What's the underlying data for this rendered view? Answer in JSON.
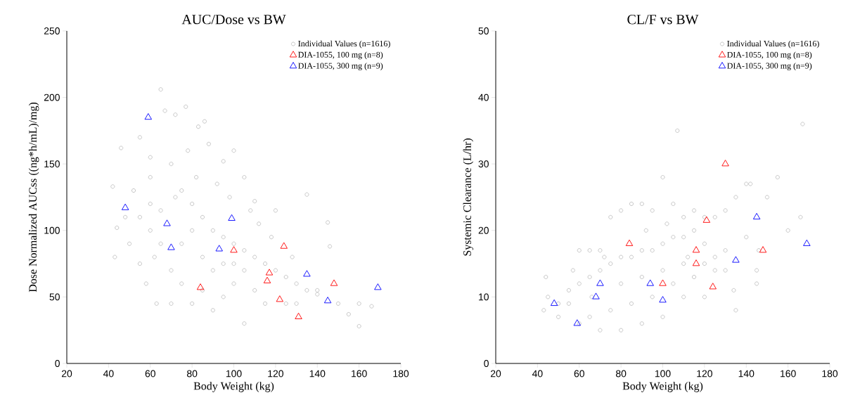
{
  "chart_data": [
    {
      "type": "scatter",
      "title": "AUC/Dose vs BW",
      "xlabel": "Body Weight (kg)",
      "ylabel": "Dose Normalized AUCss ((ng*h/mL)/mg)",
      "xlim": [
        20,
        180
      ],
      "xticks": [
        20,
        40,
        60,
        80,
        100,
        120,
        140,
        160,
        180
      ],
      "ylim": [
        0,
        250
      ],
      "yticks": [
        0,
        50,
        100,
        150,
        200,
        250
      ],
      "grid": false,
      "legend": "top right",
      "series": [
        {
          "name": "Individual Values (n=1616)",
          "color": "#c0c0c0",
          "marker": "circle",
          "x": [
            42,
            44,
            43,
            46,
            55,
            60,
            65,
            67,
            72,
            77,
            83,
            86,
            88,
            95,
            100,
            105,
            110,
            120,
            135,
            145,
            146,
            160,
            160,
            166,
            155,
            150,
            140,
            105,
            90,
            80,
            70,
            63,
            58,
            55,
            50,
            48,
            52,
            60,
            70,
            75,
            80,
            85,
            90,
            95,
            100,
            105,
            110,
            115,
            120,
            125,
            130,
            135,
            140,
            128,
            118,
            112,
            108,
            98,
            92,
            82,
            72,
            65,
            60,
            62,
            70,
            75,
            85,
            95,
            100,
            110,
            115,
            125,
            130,
            75,
            85,
            95,
            105,
            65,
            80,
            90,
            100,
            55,
            60,
            78
          ],
          "values": [
            133,
            102,
            80,
            162,
            170,
            155,
            206,
            190,
            187,
            193,
            178,
            182,
            165,
            152,
            160,
            140,
            122,
            115,
            127,
            106,
            88,
            45,
            28,
            43,
            37,
            45,
            55,
            30,
            40,
            45,
            45,
            45,
            60,
            75,
            90,
            110,
            130,
            140,
            150,
            130,
            120,
            110,
            100,
            95,
            90,
            85,
            80,
            75,
            70,
            65,
            60,
            55,
            52,
            80,
            95,
            105,
            115,
            125,
            135,
            140,
            125,
            115,
            100,
            80,
            70,
            60,
            55,
            50,
            60,
            55,
            45,
            45,
            45,
            90,
            80,
            75,
            70,
            90,
            100,
            70,
            75,
            110,
            120,
            160
          ]
        },
        {
          "name": "DIA-1055, 100 mg (n=8)",
          "color": "#ff0000",
          "marker": "triangle",
          "x": [
            84,
            100,
            124,
            117,
            116,
            122,
            131,
            148
          ],
          "values": [
            57,
            85,
            88,
            68,
            62,
            48,
            35,
            60
          ]
        },
        {
          "name": "DIA-1055, 300 mg (n=9)",
          "color": "#0000ff",
          "marker": "triangle",
          "x": [
            59,
            48,
            68,
            70,
            99,
            93,
            135,
            145,
            169
          ],
          "values": [
            185,
            117,
            105,
            87,
            109,
            86,
            67,
            47,
            57
          ]
        }
      ]
    },
    {
      "type": "scatter",
      "title": "CL/F vs BW",
      "xlabel": "Body Weight (kg)",
      "ylabel": "Systemic Clearance (L/hr)",
      "xlim": [
        20,
        180
      ],
      "xticks": [
        20,
        40,
        60,
        80,
        100,
        120,
        140,
        160,
        180
      ],
      "ylim": [
        0,
        50
      ],
      "yticks": [
        0,
        10,
        20,
        30,
        40,
        50
      ],
      "grid": false,
      "legend": "top right",
      "series": [
        {
          "name": "Individual Values (n=1616)",
          "color": "#c0c0c0",
          "marker": "circle",
          "x": [
            43,
            44,
            45,
            50,
            55,
            60,
            60,
            65,
            70,
            72,
            75,
            80,
            85,
            90,
            95,
            100,
            107,
            105,
            110,
            115,
            120,
            125,
            130,
            135,
            140,
            142,
            150,
            155,
            167,
            166,
            160,
            146,
            145,
            140,
            135,
            134,
            130,
            120,
            110,
            100,
            90,
            80,
            70,
            65,
            55,
            60,
            65,
            70,
            75,
            80,
            85,
            90,
            95,
            100,
            105,
            110,
            115,
            120,
            125,
            130,
            75,
            85,
            95,
            105,
            115,
            125,
            80,
            90,
            100,
            110,
            120,
            145,
            50,
            57,
            66,
            92,
            102,
            112
          ],
          "values": [
            8,
            13,
            10,
            7,
            11,
            6,
            17,
            17,
            17,
            16,
            22,
            23,
            24,
            24,
            23,
            28,
            35,
            24,
            22,
            23,
            22,
            22,
            23,
            25,
            27,
            27,
            25,
            28,
            36,
            22,
            20,
            17,
            12,
            19,
            8,
            11,
            14,
            10,
            10,
            7,
            6,
            5,
            5,
            7,
            9,
            12,
            13,
            14,
            15,
            16,
            16,
            17,
            17,
            18,
            19,
            19,
            20,
            18,
            16,
            17,
            8,
            9,
            10,
            12,
            13,
            14,
            12,
            13,
            14,
            15,
            15,
            14,
            9,
            14,
            10,
            20,
            21,
            16
          ]
        },
        {
          "name": "DIA-1055, 100 mg (n=8)",
          "color": "#ff0000",
          "marker": "triangle",
          "x": [
            84,
            100,
            116,
            116,
            121,
            124,
            130,
            148
          ],
          "values": [
            18,
            12,
            17,
            15,
            21.5,
            11.5,
            30,
            17
          ]
        },
        {
          "name": "DIA-1055, 300 mg (n=9)",
          "color": "#0000ff",
          "marker": "triangle",
          "x": [
            48,
            59,
            68,
            70,
            94,
            100,
            135,
            145,
            169
          ],
          "values": [
            9,
            6,
            10,
            12,
            12,
            9.5,
            15.5,
            22,
            18
          ]
        }
      ]
    }
  ]
}
